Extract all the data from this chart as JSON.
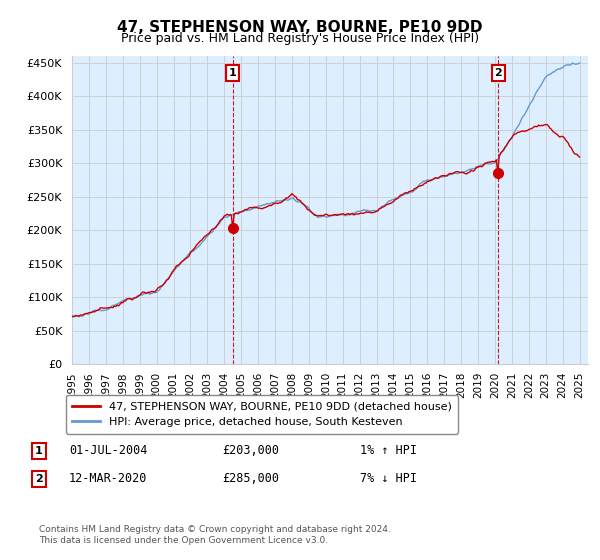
{
  "title": "47, STEPHENSON WAY, BOURNE, PE10 9DD",
  "subtitle": "Price paid vs. HM Land Registry's House Price Index (HPI)",
  "legend_line1": "47, STEPHENSON WAY, BOURNE, PE10 9DD (detached house)",
  "legend_line2": "HPI: Average price, detached house, South Kesteven",
  "annotation1_label": "1",
  "annotation1_date": "01-JUL-2004",
  "annotation1_price": "£203,000",
  "annotation1_hpi": "1% ↑ HPI",
  "annotation2_label": "2",
  "annotation2_date": "12-MAR-2020",
  "annotation2_price": "£285,000",
  "annotation2_hpi": "7% ↓ HPI",
  "footer": "Contains HM Land Registry data © Crown copyright and database right 2024.\nThis data is licensed under the Open Government Licence v3.0.",
  "ylim": [
    0,
    460000
  ],
  "yticks": [
    0,
    50000,
    100000,
    150000,
    200000,
    250000,
    300000,
    350000,
    400000,
    450000
  ],
  "ytick_labels": [
    "£0",
    "£50K",
    "£100K",
    "£150K",
    "£200K",
    "£250K",
    "£300K",
    "£350K",
    "£400K",
    "£450K"
  ],
  "red_line_color": "#cc0000",
  "blue_line_color": "#6699cc",
  "fill_color": "#ddeeff",
  "vline_color": "#cc0000",
  "bg_color": "#ffffff",
  "grid_color": "#cccccc",
  "sale1_x": 2004.5,
  "sale2_x": 2020.2,
  "sale1_value": 203000,
  "sale2_value": 285000,
  "box_color": "#cc0000",
  "title_fontsize": 11,
  "subtitle_fontsize": 9
}
